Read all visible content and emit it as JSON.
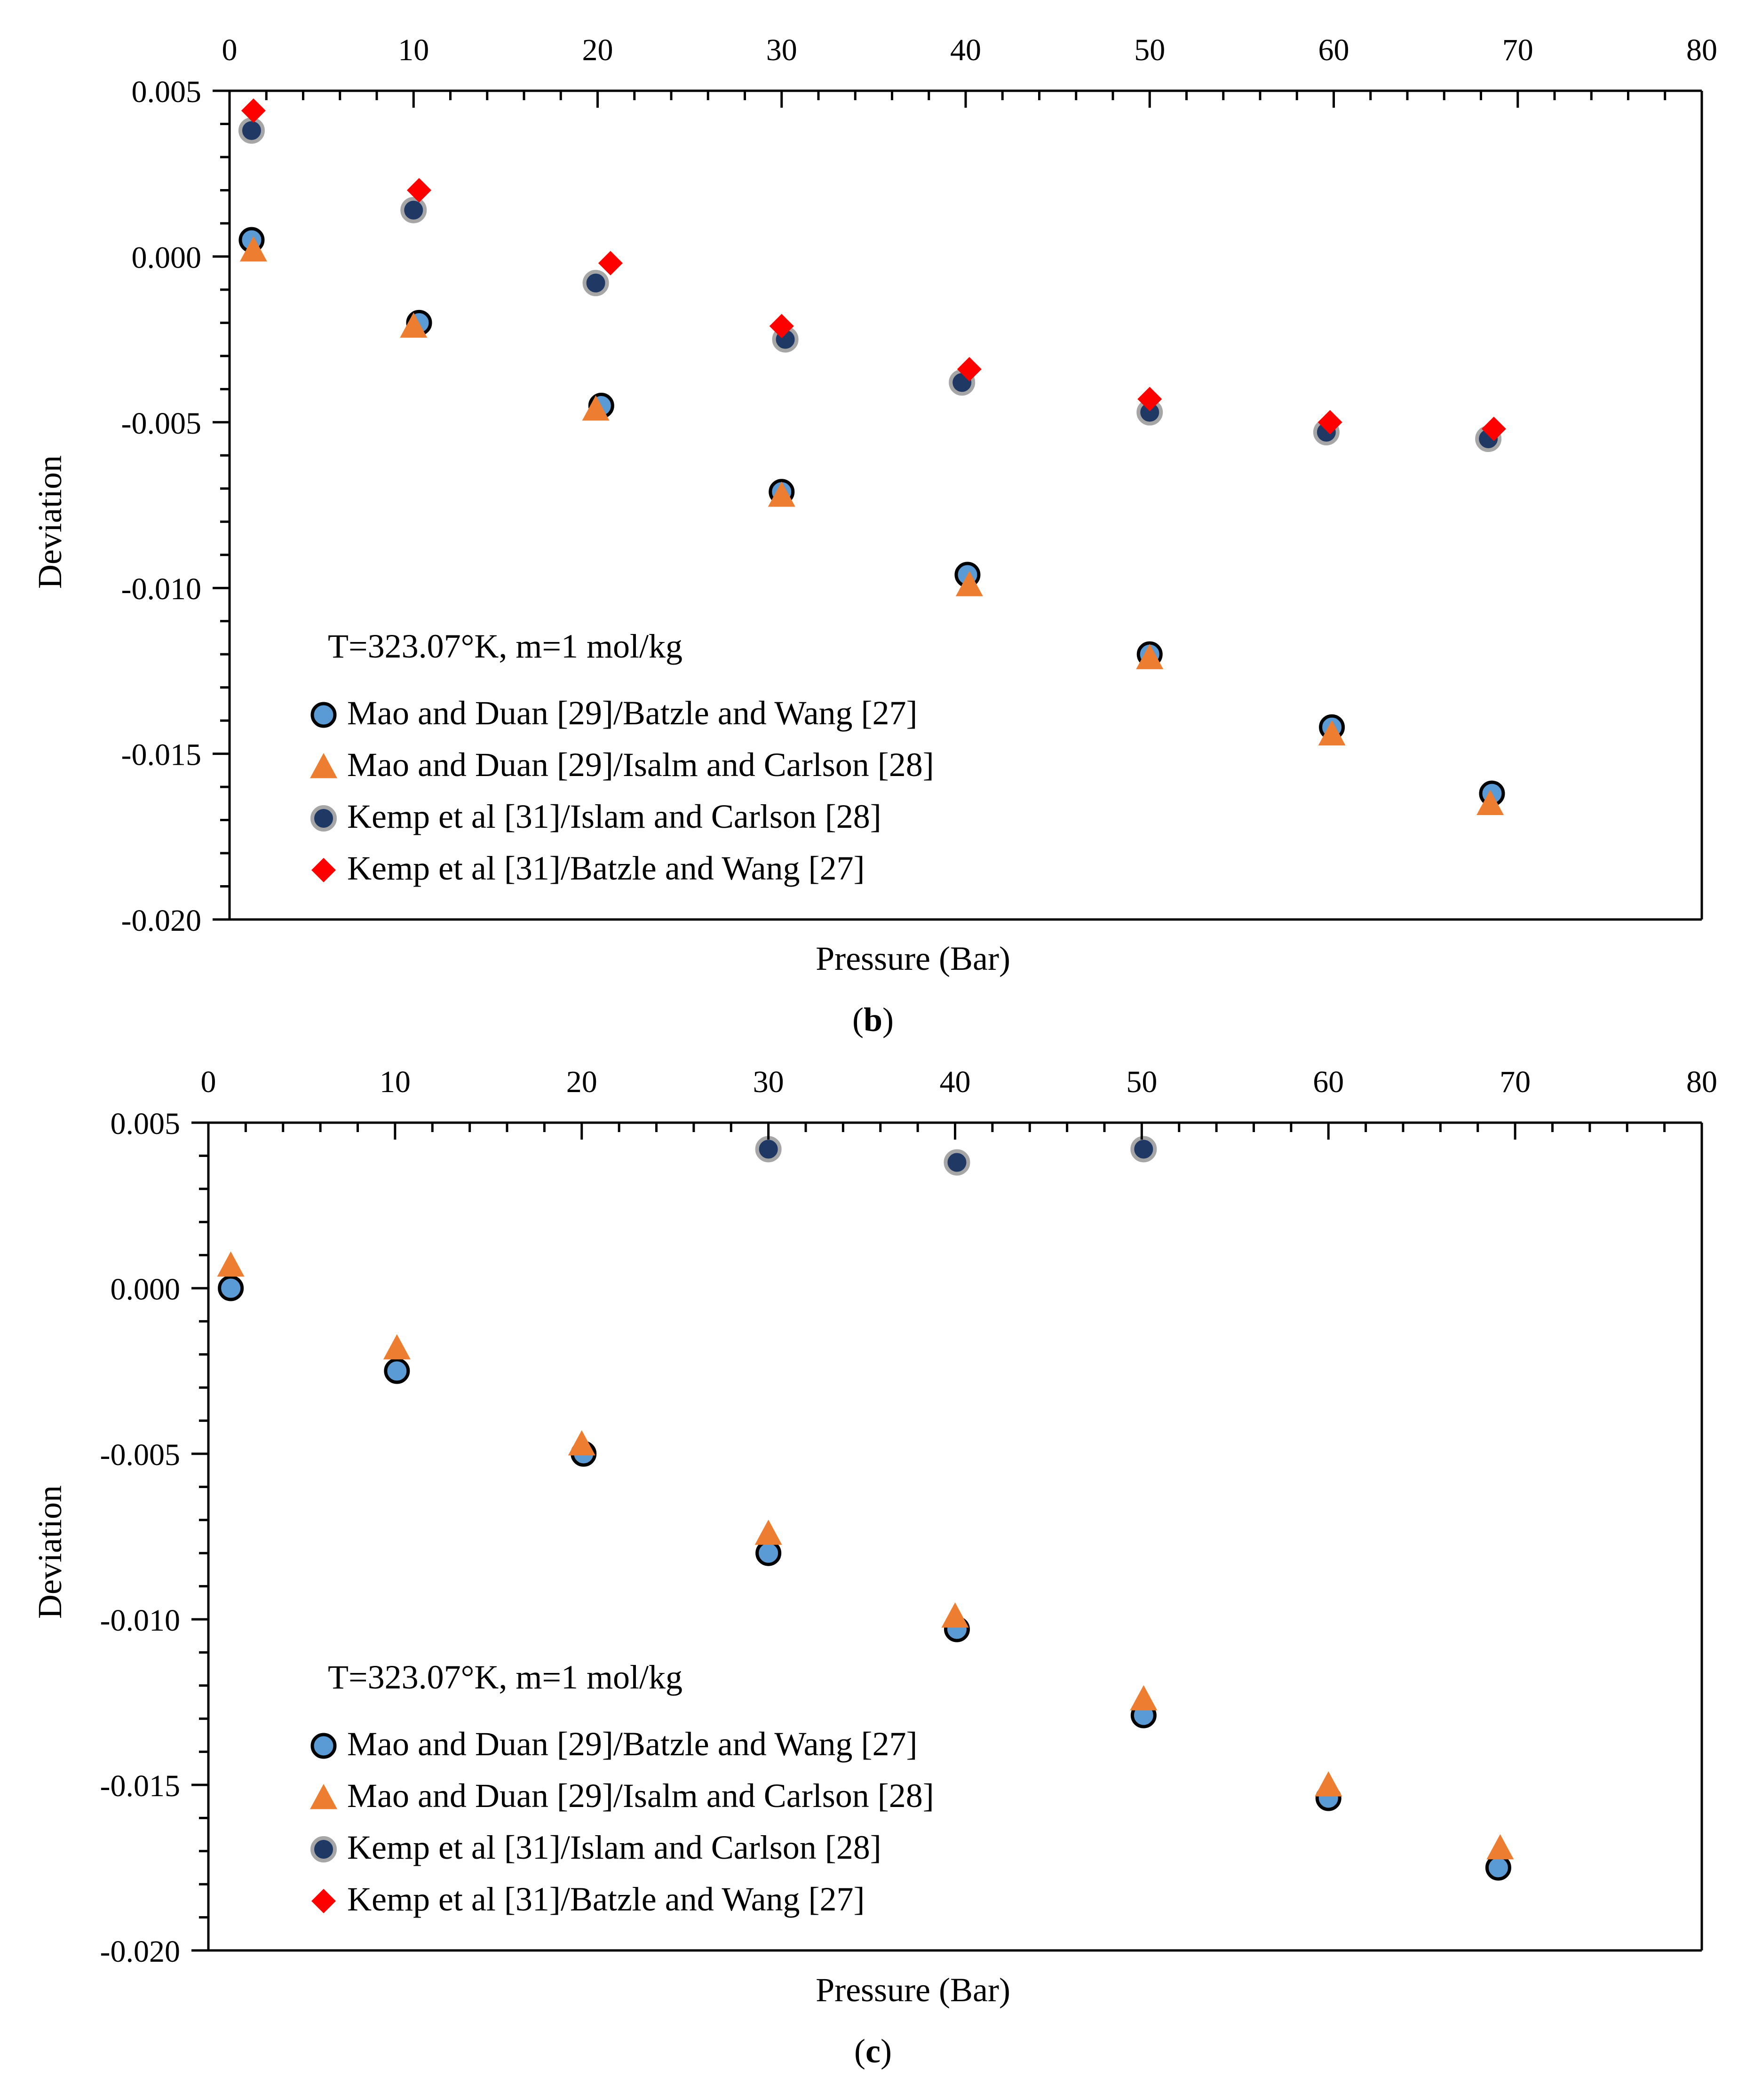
{
  "chart_data": [
    {
      "type": "scatter",
      "panel_label": "b",
      "caption_open": "(",
      "caption_close": ")",
      "annotation": "T=323.07°K, m=1 mol/kg",
      "xlabel": "Pressure (Bar)",
      "ylabel": "Deviation",
      "xlim": [
        0,
        80
      ],
      "ylim": [
        -0.02,
        0.005
      ],
      "x_ticks": [
        0,
        10,
        20,
        30,
        40,
        50,
        60,
        70,
        80
      ],
      "x_tick_labels": [
        "0",
        "10",
        "20",
        "30",
        "40",
        "50",
        "60",
        "70",
        "80"
      ],
      "y_ticks": [
        0.005,
        0.0,
        -0.005,
        -0.01,
        -0.015,
        -0.02
      ],
      "y_tick_labels": [
        "0.005",
        "0.000",
        "-0.005",
        "-0.010",
        "-0.015",
        "-0.020"
      ],
      "x_axis_position": "top",
      "grid": false,
      "legend_position": "bottom-left",
      "series": [
        {
          "name": "Mao and Duan [29]/Batzle and Wang [27]",
          "marker": "circle-light",
          "color": "#5B9BD5",
          "x": [
            1.2,
            10.3,
            20.2,
            30.0,
            40.1,
            50.0,
            59.9,
            68.6
          ],
          "y": [
            0.0005,
            -0.002,
            -0.0045,
            -0.0071,
            -0.0096,
            -0.012,
            -0.0142,
            -0.0162
          ]
        },
        {
          "name": "Mao and Duan [29]/Isalm and Carlson [28]",
          "marker": "triangle",
          "color": "#ED7D31",
          "x": [
            1.3,
            10.0,
            19.9,
            30.0,
            40.2,
            50.0,
            59.9,
            68.5
          ],
          "y": [
            0.0002,
            -0.0021,
            -0.0046,
            -0.0072,
            -0.0099,
            -0.0121,
            -0.0144,
            -0.0165
          ]
        },
        {
          "name": "Kemp et al [31]/Islam and Carlson [28]",
          "marker": "circle-dark",
          "color": "#1F3864",
          "x": [
            1.2,
            10.0,
            19.9,
            30.2,
            39.8,
            50.0,
            59.6,
            68.4
          ],
          "y": [
            0.0038,
            0.0014,
            -0.0008,
            -0.0025,
            -0.0038,
            -0.0047,
            -0.0053,
            -0.0055
          ]
        },
        {
          "name": "Kemp et al [31]/Batzle and Wang [27]",
          "marker": "diamond",
          "color": "#FF0000",
          "x": [
            1.3,
            10.3,
            20.7,
            30.0,
            40.2,
            50.0,
            59.8,
            68.7
          ],
          "y": [
            0.0044,
            0.002,
            -0.0002,
            -0.0021,
            -0.0034,
            -0.0043,
            -0.005,
            -0.0052
          ]
        }
      ]
    },
    {
      "type": "scatter",
      "panel_label": "c",
      "caption_open": "(",
      "caption_close": ")",
      "annotation": "T=323.07°K, m=1 mol/kg",
      "xlabel": "Pressure (Bar)",
      "ylabel": "Deviation",
      "xlim": [
        0,
        80
      ],
      "ylim": [
        -0.02,
        0.005
      ],
      "x_ticks": [
        0,
        10,
        20,
        30,
        40,
        50,
        60,
        70,
        80
      ],
      "x_tick_labels": [
        "0",
        "10",
        "20",
        "30",
        "40",
        "50",
        "60",
        "70",
        "80"
      ],
      "y_ticks": [
        0.005,
        0.0,
        -0.005,
        -0.01,
        -0.015,
        -0.02
      ],
      "y_tick_labels": [
        "0.005",
        "0.000",
        "-0.005",
        "-0.010",
        "-0.015",
        "-0.020"
      ],
      "x_axis_position": "top",
      "grid": false,
      "legend_position": "bottom-left",
      "series": [
        {
          "name": "Mao and Duan [29]/Batzle and Wang [27]",
          "marker": "circle-light",
          "color": "#5B9BD5",
          "x": [
            1.2,
            10.1,
            20.1,
            30.0,
            40.1,
            50.1,
            60.0,
            69.1
          ],
          "y": [
            0.0,
            -0.0025,
            -0.005,
            -0.008,
            -0.0103,
            -0.0129,
            -0.0154,
            -0.0175
          ]
        },
        {
          "name": "Mao and Duan [29]/Isalm and Carlson [28]",
          "marker": "triangle",
          "color": "#ED7D31",
          "x": [
            1.2,
            10.1,
            20.0,
            30.0,
            40.0,
            50.1,
            60.0,
            69.2
          ],
          "y": [
            0.0007,
            -0.0018,
            -0.0047,
            -0.0074,
            -0.0099,
            -0.0124,
            -0.015,
            -0.0169
          ]
        },
        {
          "name": "Kemp et al [31]/Islam and Carlson [28]",
          "marker": "circle-dark",
          "color": "#1F3864",
          "x": [
            30.0,
            40.1,
            50.1
          ],
          "y": [
            0.0042,
            0.0038,
            0.0042
          ]
        },
        {
          "name": "Kemp et al [31]/Batzle and Wang [27]",
          "marker": "diamond",
          "color": "#FF0000",
          "x": [],
          "y": []
        }
      ]
    }
  ]
}
